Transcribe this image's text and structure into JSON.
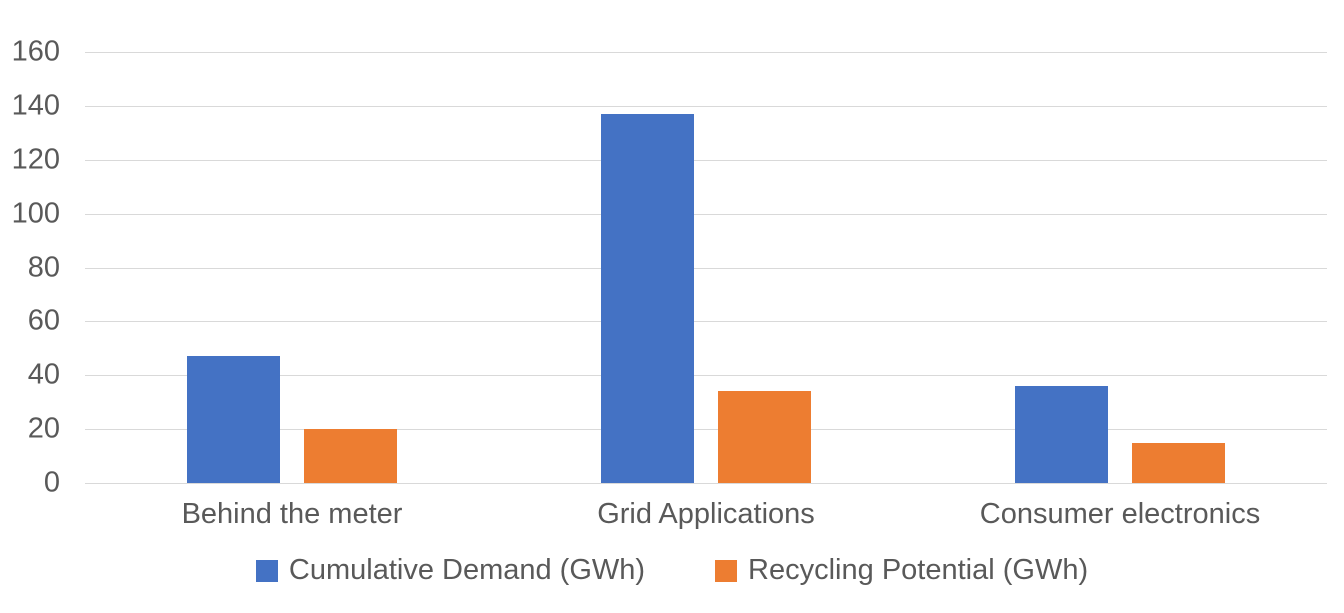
{
  "chart_data": {
    "type": "bar",
    "title": "",
    "xlabel": "",
    "ylabel": "",
    "categories": [
      "Behind the meter",
      "Grid Applications",
      "Consumer electronics"
    ],
    "series": [
      {
        "name": "Cumulative Demand (GWh)",
        "color": "#4472C4",
        "values": [
          47,
          137,
          36
        ]
      },
      {
        "name": "Recycling Potential (GWh)",
        "color": "#ED7D31",
        "values": [
          20,
          34,
          15
        ]
      }
    ],
    "ylim": [
      0,
      160
    ],
    "yticks": [
      0,
      20,
      40,
      60,
      80,
      100,
      120,
      140,
      160
    ],
    "grid": true,
    "legend_position": "bottom"
  },
  "colors": {
    "background": "#FFFFFF",
    "gridline": "#D9D9D9",
    "axis_text": "#595959",
    "series_blue": "#4472C4",
    "series_orange": "#ED7D31"
  }
}
